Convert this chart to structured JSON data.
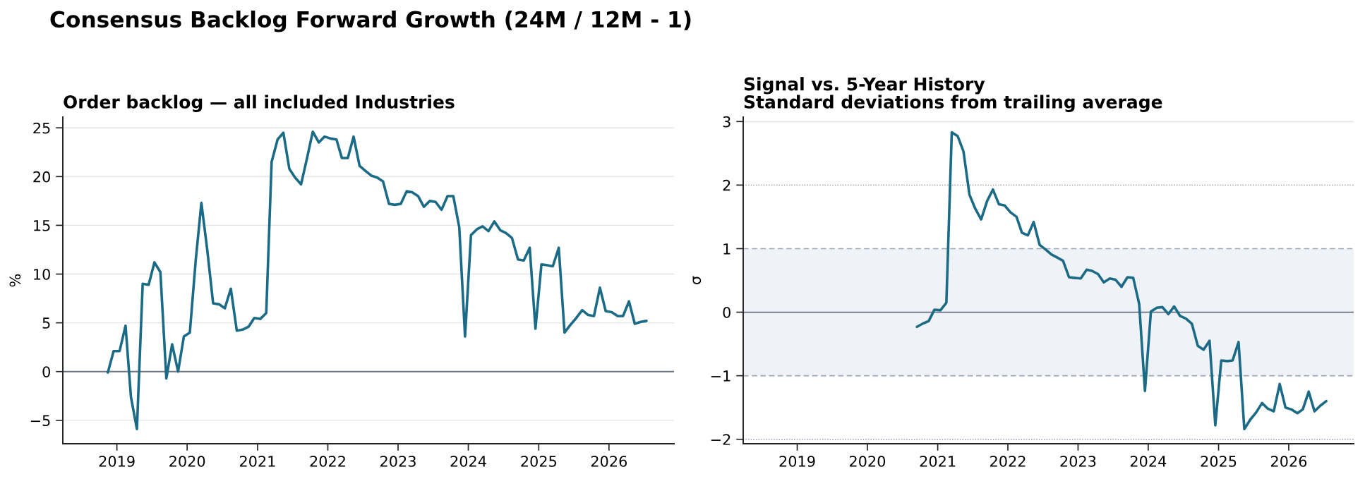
{
  "chart_data": [
    {
      "type": "line",
      "title": "Consensus Backlog Forward Growth (24M / 12M - 1)",
      "subtitle": "Order backlog — all included Industries",
      "ylabel": "%",
      "series": [
        {
          "color": "#1b6b87",
          "x": [
            "2018-11-15",
            "2018-12-15",
            "2019-01-15",
            "2019-02-15",
            "2019-03-15",
            "2019-04-15",
            "2019-05-15",
            "2019-06-15",
            "2019-07-15",
            "2019-08-15",
            "2019-09-15",
            "2019-10-15",
            "2019-11-15",
            "2019-12-15",
            "2020-01-15",
            "2020-02-15",
            "2020-03-15",
            "2020-04-15",
            "2020-05-15",
            "2020-06-15",
            "2020-07-15",
            "2020-08-15",
            "2020-09-15",
            "2020-10-15",
            "2020-11-15",
            "2020-12-15",
            "2021-01-15",
            "2021-02-15",
            "2021-03-15",
            "2021-04-15",
            "2021-05-15",
            "2021-06-15",
            "2021-07-15",
            "2021-08-15",
            "2021-09-15",
            "2021-10-15",
            "2021-11-15",
            "2021-12-15",
            "2022-01-15",
            "2022-02-15",
            "2022-03-15",
            "2022-04-15",
            "2022-05-15",
            "2022-06-15",
            "2022-07-15",
            "2022-08-15",
            "2022-09-15",
            "2022-10-15",
            "2022-11-15",
            "2022-12-15",
            "2023-01-15",
            "2023-02-15",
            "2023-03-15",
            "2023-04-15",
            "2023-05-15",
            "2023-06-15",
            "2023-07-15",
            "2023-08-15",
            "2023-09-15",
            "2023-10-15",
            "2023-11-15",
            "2023-12-15",
            "2024-01-15",
            "2024-02-15",
            "2024-03-15",
            "2024-04-15",
            "2024-05-15",
            "2024-06-15",
            "2024-07-15",
            "2024-08-15",
            "2024-09-15",
            "2024-10-15",
            "2024-11-15",
            "2024-12-15",
            "2025-01-15",
            "2025-02-15",
            "2025-03-15",
            "2025-04-15",
            "2025-05-15",
            "2025-06-15",
            "2025-07-15",
            "2025-08-15",
            "2025-09-15",
            "2025-10-15",
            "2025-11-15",
            "2025-12-15",
            "2026-01-15",
            "2026-02-15",
            "2026-03-15",
            "2026-04-15",
            "2026-05-15",
            "2026-06-15",
            "2026-07-15"
          ],
          "values": [
            -0.1,
            2.1,
            2.1,
            4.7,
            -2.6,
            -5.9,
            9.0,
            8.9,
            11.2,
            10.2,
            -0.7,
            2.8,
            0.0,
            3.6,
            4.0,
            11.5,
            17.3,
            12.4,
            7.0,
            6.9,
            6.5,
            8.5,
            4.2,
            4.3,
            4.6,
            5.5,
            5.4,
            6.0,
            21.5,
            23.8,
            24.5,
            20.8,
            19.9,
            19.2,
            21.9,
            24.6,
            23.5,
            24.1,
            23.9,
            23.8,
            21.9,
            21.9,
            24.1,
            21.1,
            20.6,
            20.1,
            19.9,
            19.5,
            17.2,
            17.1,
            17.2,
            18.5,
            18.4,
            18.0,
            16.9,
            17.5,
            17.4,
            16.6,
            18.0,
            18.0,
            14.8,
            3.6,
            14.0,
            14.6,
            14.9,
            14.4,
            15.4,
            14.5,
            14.2,
            13.7,
            11.5,
            11.4,
            12.7,
            4.4,
            11.0,
            10.9,
            10.8,
            12.7,
            4.0,
            4.8,
            5.5,
            6.3,
            5.8,
            5.7,
            8.6,
            6.2,
            6.1,
            5.7,
            5.7,
            7.2,
            4.9,
            5.1,
            5.2
          ]
        }
      ],
      "xlim": [
        "2018-03-26",
        "2026-12-05"
      ],
      "xticks": [
        "2019",
        "2020",
        "2021",
        "2022",
        "2023",
        "2024",
        "2025",
        "2026"
      ],
      "ylim": [
        -7.4,
        26.1
      ],
      "yticks": [
        {
          "value": -5,
          "label": "−5"
        },
        0,
        5,
        10,
        15,
        20,
        25
      ],
      "grid": "y",
      "line_style": "solid",
      "ref_lines": [
        {
          "axis": "y",
          "value": 0,
          "color": "#6b7280",
          "line_style": "solid"
        }
      ]
    },
    {
      "type": "line",
      "title": "Signal vs. 5-Year History",
      "subtitle": "Standard deviations from trailing average",
      "ylabel": "σ",
      "series": [
        {
          "color": "#1b6b87",
          "x": [
            "2020-09-15",
            "2020-10-15",
            "2020-11-15",
            "2020-12-15",
            "2021-01-15",
            "2021-02-15",
            "2021-03-15",
            "2021-04-15",
            "2021-05-15",
            "2021-06-15",
            "2021-07-15",
            "2021-08-15",
            "2021-09-15",
            "2021-10-15",
            "2021-11-15",
            "2021-12-15",
            "2022-01-15",
            "2022-02-15",
            "2022-03-15",
            "2022-04-15",
            "2022-05-15",
            "2022-06-15",
            "2022-07-15",
            "2022-08-15",
            "2022-09-15",
            "2022-10-15",
            "2022-11-15",
            "2022-12-15",
            "2023-01-15",
            "2023-02-15",
            "2023-03-15",
            "2023-04-15",
            "2023-05-15",
            "2023-06-15",
            "2023-07-15",
            "2023-08-15",
            "2023-09-15",
            "2023-10-15",
            "2023-11-15",
            "2023-12-15",
            "2024-01-15",
            "2024-02-15",
            "2024-03-15",
            "2024-04-15",
            "2024-05-15",
            "2024-06-15",
            "2024-07-15",
            "2024-08-15",
            "2024-09-15",
            "2024-10-15",
            "2024-11-15",
            "2024-12-15",
            "2025-01-15",
            "2025-02-15",
            "2025-03-15",
            "2025-04-15",
            "2025-05-15",
            "2025-06-15",
            "2025-07-15",
            "2025-08-15",
            "2025-09-15",
            "2025-10-15",
            "2025-11-15",
            "2025-12-15",
            "2026-01-15",
            "2026-02-15",
            "2026-03-15",
            "2026-04-15",
            "2026-05-15",
            "2026-06-15",
            "2026-07-15"
          ],
          "values": [
            -0.23,
            -0.18,
            -0.14,
            0.04,
            0.03,
            0.15,
            2.83,
            2.77,
            2.53,
            1.85,
            1.63,
            1.46,
            1.75,
            1.93,
            1.7,
            1.68,
            1.57,
            1.5,
            1.25,
            1.21,
            1.42,
            1.06,
            0.99,
            0.91,
            0.86,
            0.81,
            0.55,
            0.54,
            0.53,
            0.67,
            0.65,
            0.6,
            0.47,
            0.53,
            0.51,
            0.4,
            0.55,
            0.54,
            0.13,
            -1.24,
            0.01,
            0.07,
            0.08,
            -0.03,
            0.09,
            -0.06,
            -0.1,
            -0.18,
            -0.53,
            -0.59,
            -0.45,
            -1.78,
            -0.76,
            -0.77,
            -0.76,
            -0.47,
            -1.84,
            -1.69,
            -1.58,
            -1.43,
            -1.52,
            -1.56,
            -1.13,
            -1.5,
            -1.53,
            -1.59,
            -1.53,
            -1.25,
            -1.56,
            -1.47,
            -1.4
          ]
        }
      ],
      "xlim": [
        "2018-03-26",
        "2026-12-05"
      ],
      "xticks": [
        "2019",
        "2020",
        "2021",
        "2022",
        "2023",
        "2024",
        "2025",
        "2026"
      ],
      "ylim": [
        -2.07,
        3.07
      ],
      "yticks": [
        {
          "value": -2,
          "label": "−2"
        },
        {
          "value": -1,
          "label": "−1"
        },
        0,
        1,
        2,
        3
      ],
      "line_style": "solid",
      "ref_lines": [
        {
          "axis": "y",
          "value": 3,
          "color": "#e3e5e8",
          "line_style": "solid"
        },
        {
          "axis": "y",
          "value": 2,
          "color": "#8b93a5",
          "line_style": "dotted"
        },
        {
          "axis": "y",
          "value": 1,
          "color": "#9aa6b8",
          "line_style": "dashed"
        },
        {
          "axis": "y",
          "value": 0,
          "color": "#6b7280",
          "line_style": "solid"
        },
        {
          "axis": "y",
          "value": -1,
          "color": "#9aa6b8",
          "line_style": "dashed"
        },
        {
          "axis": "y",
          "value": -2,
          "color": "#8b93a5",
          "line_style": "dotted"
        }
      ],
      "bands": [
        {
          "axis": "y",
          "from": -1,
          "to": 1,
          "color": "#eff3f8"
        }
      ]
    }
  ]
}
